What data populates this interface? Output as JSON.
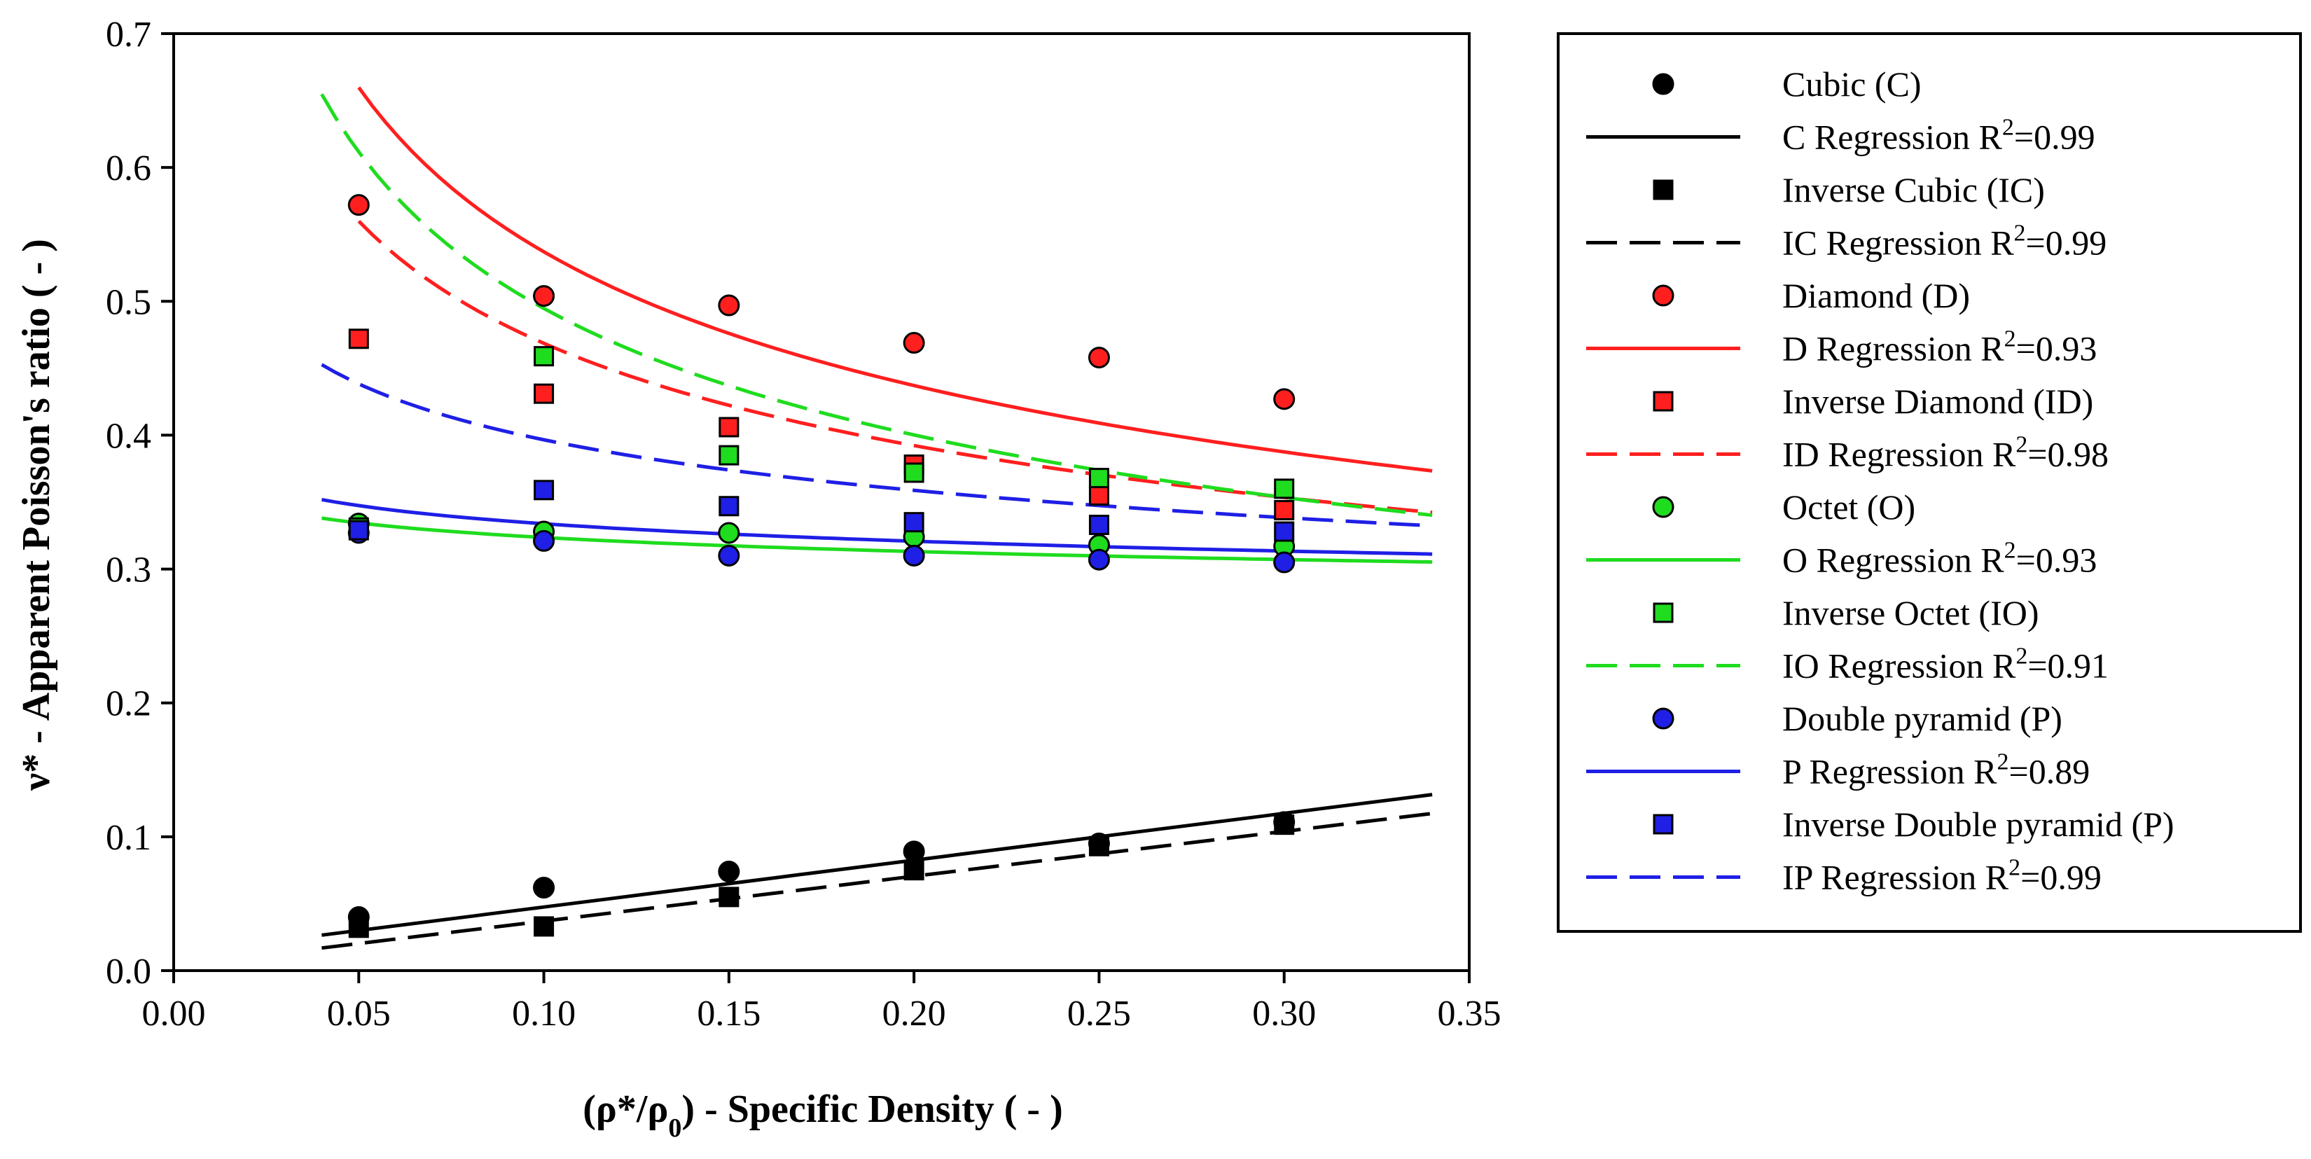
{
  "chart_data": {
    "type": "scatter",
    "xlabel": "(ρ*/ρ0) - Specific Density ( - )",
    "xlabel_parts": {
      "main": "(ρ*/ρ",
      "sub": "0",
      "tail": ") - Specific Density ( - )"
    },
    "ylabel": "ν* - Apparent Poisson's ratio ( - )",
    "xlim": [
      0.0,
      0.35
    ],
    "ylim": [
      0.0,
      0.7
    ],
    "xticks": [
      0.0,
      0.05,
      0.1,
      0.15,
      0.2,
      0.25,
      0.3,
      0.35
    ],
    "xtick_labels": [
      "0.00",
      "0.05",
      "0.10",
      "0.15",
      "0.20",
      "0.25",
      "0.30",
      "0.35"
    ],
    "yticks": [
      0.0,
      0.1,
      0.2,
      0.3,
      0.4,
      0.5,
      0.6,
      0.7
    ],
    "ytick_labels": [
      "0.0",
      "0.1",
      "0.2",
      "0.3",
      "0.4",
      "0.5",
      "0.6",
      "0.7"
    ],
    "grid": false,
    "legend_position": "right",
    "x": [
      0.05,
      0.1,
      0.15,
      0.2,
      0.25,
      0.3
    ],
    "colors": {
      "C": "#000000",
      "D": "#ff1f1f",
      "O": "#1fdc1f",
      "P": "#1f1fe6"
    },
    "scatter_series": [
      {
        "key": "C",
        "name": "Cubic (C)",
        "marker": "circle",
        "color": "#000000",
        "values": [
          0.04,
          0.062,
          0.074,
          0.089,
          0.095,
          0.111
        ]
      },
      {
        "key": "IC",
        "name": "Inverse Cubic (IC)",
        "marker": "square",
        "color": "#000000",
        "values": [
          0.032,
          0.033,
          0.055,
          0.075,
          0.093,
          0.109
        ]
      },
      {
        "key": "D",
        "name": "Diamond (D)",
        "marker": "circle",
        "color": "#ff1f1f",
        "values": [
          0.572,
          0.504,
          0.497,
          0.469,
          0.458,
          0.427
        ]
      },
      {
        "key": "ID",
        "name": "Inverse Diamond (ID)",
        "marker": "square",
        "color": "#ff1f1f",
        "values": [
          0.472,
          0.431,
          0.406,
          0.378,
          0.355,
          0.344
        ]
      },
      {
        "key": "O",
        "name": "Octet (O)",
        "marker": "circle",
        "color": "#1fdc1f",
        "values": [
          0.334,
          0.328,
          0.327,
          0.324,
          0.318,
          0.317
        ]
      },
      {
        "key": "IO",
        "name": "Inverse Octet (IO)",
        "marker": "square",
        "color": "#1fdc1f",
        "values": [
          0.331,
          0.459,
          0.385,
          0.372,
          0.368,
          0.36
        ]
      },
      {
        "key": "P",
        "name": "Double pyramid (P)",
        "marker": "circle",
        "color": "#1f1fe6",
        "values": [
          0.327,
          0.321,
          0.31,
          0.31,
          0.307,
          0.305
        ]
      },
      {
        "key": "IP",
        "name": "Inverse Double pyramid (P)",
        "marker": "square",
        "color": "#1f1fe6",
        "values": [
          0.329,
          0.359,
          0.347,
          0.335,
          0.333,
          0.328
        ]
      }
    ],
    "regression_series": [
      {
        "key": "C",
        "name": "C Regression R2=0.99",
        "label": "C Regression R",
        "sup": "2",
        "r2": "=0.99",
        "style": "solid",
        "color": "#000000",
        "model": "linear",
        "params": [
          0.0125,
          0.35
        ],
        "x_range": [
          0.04,
          0.34
        ]
      },
      {
        "key": "IC",
        "name": "IC Regression R2=0.99",
        "label": "IC Regression R",
        "sup": "2",
        "r2": "=0.99",
        "style": "dashed",
        "color": "#000000",
        "model": "linear",
        "params": [
          0.0035,
          0.335
        ],
        "x_range": [
          0.04,
          0.34
        ]
      },
      {
        "key": "D",
        "name": "D Regression R2=0.93",
        "label": "D Regression R",
        "sup": "2",
        "r2": "=0.93",
        "style": "solid",
        "color": "#ff1f1f",
        "model": "power",
        "params": [
          0.271,
          -0.297
        ],
        "x_range": [
          0.05,
          0.34
        ]
      },
      {
        "key": "ID",
        "name": "ID Regression R2=0.98",
        "label": "ID Regression R",
        "sup": "2",
        "r2": "=0.98",
        "style": "dashed",
        "color": "#ff1f1f",
        "model": "power",
        "params": [
          0.2595,
          -0.2567
        ],
        "x_range": [
          0.05,
          0.34
        ]
      },
      {
        "key": "O",
        "name": "O Regression R2=0.93",
        "label": "O Regression R",
        "sup": "2",
        "r2": "=0.93",
        "style": "solid",
        "color": "#1fdc1f",
        "model": "power",
        "params": [
          0.29,
          -0.0476
        ],
        "x_range": [
          0.04,
          0.34
        ]
      },
      {
        "key": "IO",
        "name": "IO Regression R2=0.91",
        "label": "IO Regression R",
        "sup": "2",
        "r2": "=0.91",
        "style": "dashed",
        "color": "#1fdc1f",
        "model": "power",
        "params": [
          0.2446,
          -0.3059
        ],
        "x_range": [
          0.04,
          0.34
        ]
      },
      {
        "key": "P",
        "name": "P Regression R2=0.89",
        "label": "P Regression R",
        "sup": "2",
        "r2": "=0.89",
        "style": "solid",
        "color": "#1f1fe6",
        "model": "power",
        "params": [
          0.2925,
          -0.0574
        ],
        "x_range": [
          0.04,
          0.34
        ]
      },
      {
        "key": "IP",
        "name": "IP Regression R2=0.99",
        "label": "IP Regression R",
        "sup": "2",
        "r2": "=0.99",
        "style": "dashed",
        "color": "#1f1fe6",
        "model": "power",
        "params": [
          0.2844,
          -0.1444
        ],
        "x_range": [
          0.04,
          0.34
        ]
      }
    ],
    "legend_order": [
      {
        "type": "scatter",
        "key": "C"
      },
      {
        "type": "regression",
        "key": "C"
      },
      {
        "type": "scatter",
        "key": "IC"
      },
      {
        "type": "regression",
        "key": "IC"
      },
      {
        "type": "scatter",
        "key": "D"
      },
      {
        "type": "regression",
        "key": "D"
      },
      {
        "type": "scatter",
        "key": "ID"
      },
      {
        "type": "regression",
        "key": "ID"
      },
      {
        "type": "scatter",
        "key": "O"
      },
      {
        "type": "regression",
        "key": "O"
      },
      {
        "type": "scatter",
        "key": "IO"
      },
      {
        "type": "regression",
        "key": "IO"
      },
      {
        "type": "scatter",
        "key": "P"
      },
      {
        "type": "regression",
        "key": "P"
      },
      {
        "type": "scatter",
        "key": "IP"
      },
      {
        "type": "regression",
        "key": "IP"
      }
    ]
  }
}
